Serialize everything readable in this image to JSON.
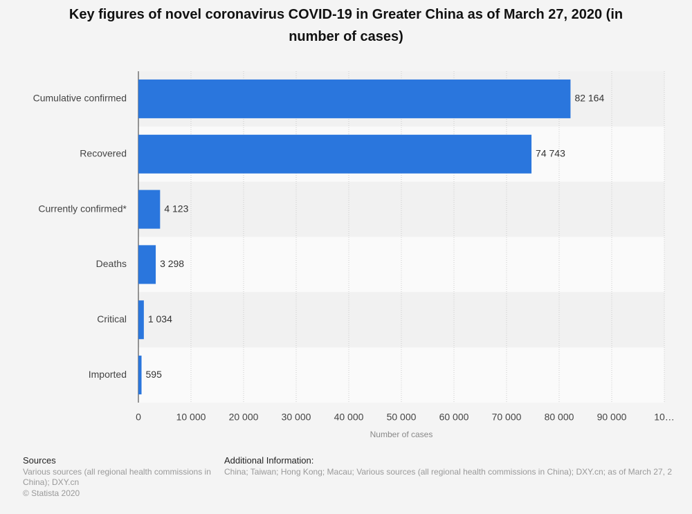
{
  "chart_data": {
    "type": "bar",
    "orientation": "horizontal",
    "title": "Key figures of novel coronavirus COVID-19 in Greater China as of March 27, 2020 (in number of cases)",
    "categories": [
      "Cumulative confirmed",
      "Recovered",
      "Currently confirmed*",
      "Deaths",
      "Critical",
      "Imported"
    ],
    "values": [
      82164,
      74743,
      4123,
      3298,
      1034,
      595
    ],
    "value_labels": [
      "82 164",
      "74 743",
      "4 123",
      "3 298",
      "1 034",
      "595"
    ],
    "color": "#2a76dd",
    "xlabel": "Number of cases",
    "xlim": [
      0,
      100000
    ],
    "xticks": [
      0,
      {
        "value": 10000,
        "label": "10 000"
      },
      {
        "value": 20000,
        "label": "20 000"
      },
      {
        "value": 30000,
        "label": "30 000"
      },
      {
        "value": 40000,
        "label": "40 000"
      },
      {
        "value": 50000,
        "label": "50 000"
      },
      {
        "value": 60000,
        "label": "60 000"
      },
      {
        "value": 70000,
        "label": "70 000"
      },
      {
        "value": 80000,
        "label": "80 000"
      },
      {
        "value": 90000,
        "label": "90 000"
      },
      {
        "value": 100000,
        "label": "10…"
      }
    ],
    "grid": true
  },
  "footer": {
    "sources_title": "Sources",
    "sources": "Various sources (all regional health commissions in China); DXY.cn",
    "copyright": "© Statista 2020",
    "info_title": "Additional Information:",
    "info": "China; Taiwan; Hong Kong; Macau; Various sources (all regional health commissions in China); DXY.cn; as of March 27, 2"
  }
}
